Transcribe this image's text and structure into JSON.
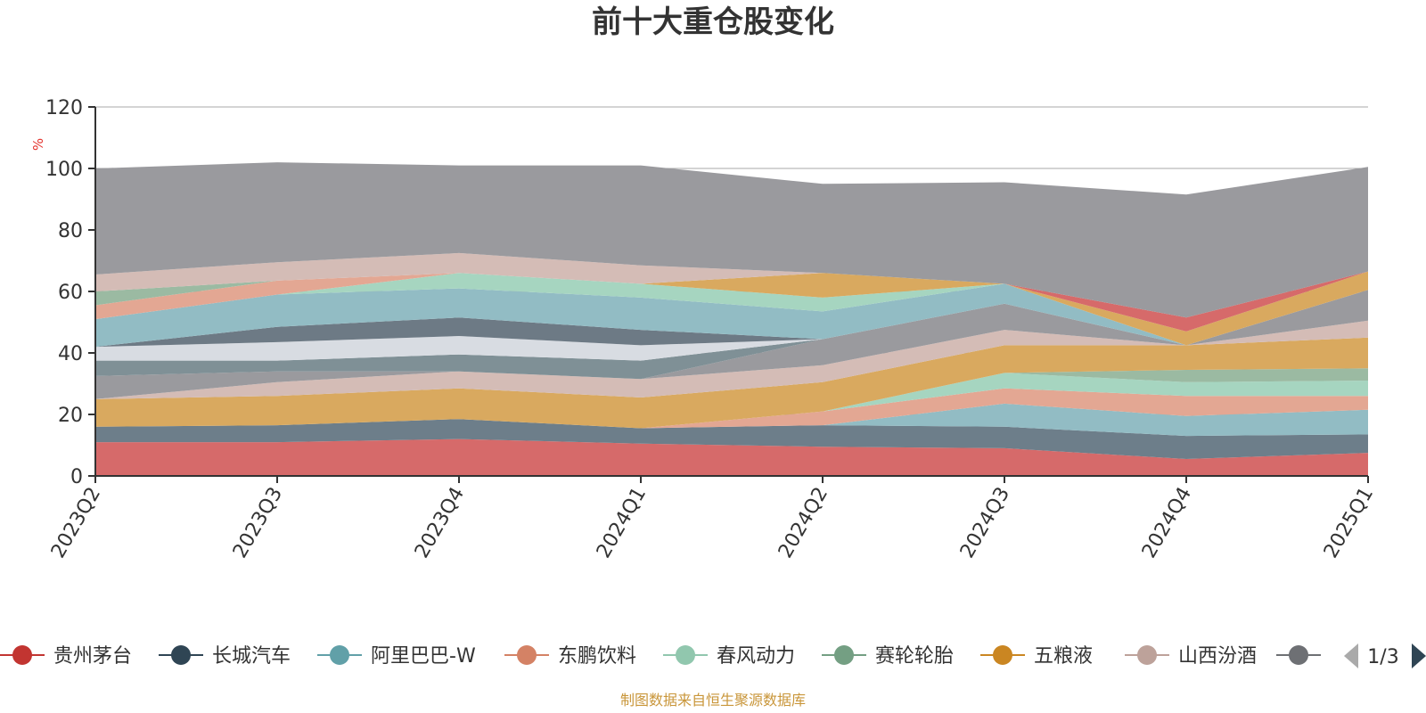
{
  "chart_data": {
    "type": "area",
    "stacked": true,
    "title": "前十大重仓股变化",
    "ylabel": "%",
    "ylim": [
      0,
      120
    ],
    "yticks": [
      0,
      20,
      40,
      60,
      80,
      100,
      120
    ],
    "grid": true,
    "x": [
      "2023Q2",
      "2023Q3",
      "2023Q4",
      "2024Q1",
      "2024Q2",
      "2024Q3",
      "2024Q4",
      "2025Q1"
    ],
    "series": [
      {
        "name": "贵州茅台",
        "color": "#d66a6a",
        "values": [
          11,
          11,
          12,
          10.5,
          9.5,
          9,
          5.5,
          7.5
        ]
      },
      {
        "name": "长城汽车",
        "color": "#6d7e8a",
        "values": [
          5,
          5.5,
          6.5,
          5,
          7,
          7,
          7.5,
          6
        ]
      },
      {
        "name": "阿里巴巴-W",
        "color": "#92bcc4",
        "values": [
          0,
          0,
          0,
          0,
          0,
          7.5,
          6.5,
          8
        ]
      },
      {
        "name": "东鹏饮料",
        "color": "#e3a793",
        "values": [
          0,
          0,
          0,
          0,
          4.5,
          5,
          6.5,
          4.5
        ]
      },
      {
        "name": "春风动力",
        "color": "#a6d5c0",
        "values": [
          0,
          0,
          0,
          0,
          0,
          5,
          4.5,
          5
        ]
      },
      {
        "name": "赛轮轮胎",
        "color": "#9bbaa2",
        "values": [
          0,
          0,
          0,
          0,
          0,
          0,
          4,
          4
        ]
      },
      {
        "name": "五粮液",
        "color": "#d9a95f",
        "values": [
          9,
          9.5,
          10,
          10,
          9.5,
          9,
          8,
          10
        ]
      },
      {
        "name": "山西汾酒",
        "color": "#d4bcb6",
        "values": [
          0,
          4.5,
          5.5,
          6,
          5.5,
          5,
          0,
          5.5
        ]
      },
      {
        "name": "",
        "color": "#9a9a9e",
        "values": [
          7.5,
          3.5,
          0,
          0,
          8.5,
          8.5,
          0,
          10
        ]
      },
      {
        "name": "",
        "color": "#7f9096",
        "values": [
          5,
          3.5,
          5.5,
          6,
          0,
          0,
          0,
          0
        ]
      },
      {
        "name": "",
        "color": "#d8dce2",
        "values": [
          4.5,
          6,
          6,
          5,
          0,
          0,
          0,
          0
        ]
      },
      {
        "name": "",
        "color": "#6d7a85",
        "values": [
          0,
          5,
          6,
          5,
          0,
          0,
          0,
          0
        ]
      },
      {
        "name": "",
        "color": "#92bcc4",
        "values": [
          9,
          10.5,
          9.5,
          10.5,
          9,
          6.5,
          0,
          0
        ]
      },
      {
        "name": "",
        "color": "#a6d5c0",
        "values": [
          0,
          0,
          5,
          4.5,
          4.5,
          0,
          0,
          0
        ]
      },
      {
        "name": "",
        "color": "#e3a793",
        "values": [
          4.5,
          4.5,
          0,
          0,
          0,
          0,
          0,
          0
        ]
      },
      {
        "name": "",
        "color": "#9bbaa2",
        "values": [
          4.5,
          0,
          0,
          0,
          0,
          0,
          0,
          0
        ]
      },
      {
        "name": "",
        "color": "#d9a95f",
        "values": [
          0,
          0,
          0,
          0,
          8,
          0,
          4.5,
          6
        ]
      },
      {
        "name": "",
        "color": "#d66a6a",
        "values": [
          0,
          0,
          0,
          0,
          0,
          0,
          4.5,
          0
        ]
      },
      {
        "name": "",
        "color": "#d4bcb6",
        "values": [
          5.5,
          6,
          6.5,
          6,
          0,
          0,
          0,
          0
        ]
      },
      {
        "name": "",
        "color": "#9a9a9e",
        "values": [
          34.5,
          32.5,
          28.5,
          32.5,
          29,
          33,
          40,
          34
        ]
      }
    ],
    "legend": {
      "position": "bottom",
      "items": [
        {
          "name": "贵州茅台",
          "color": "#c23531"
        },
        {
          "name": "长城汽车",
          "color": "#2f4554"
        },
        {
          "name": "阿里巴巴-W",
          "color": "#61a0a8"
        },
        {
          "name": "东鹏饮料",
          "color": "#d48265"
        },
        {
          "name": "春风动力",
          "color": "#91c7ae"
        },
        {
          "name": "赛轮轮胎",
          "color": "#749f83"
        },
        {
          "name": "五粮液",
          "color": "#ca8622"
        },
        {
          "name": "山西汾酒",
          "color": "#bda29a"
        },
        {
          "name": "",
          "color": "#6e7074"
        }
      ],
      "page": "1/3"
    },
    "source": "制图数据来自恒生聚源数据库"
  },
  "colors": {
    "axis": "#333333",
    "grid": "#aaaaaa",
    "pager_active": "#2f4554",
    "pager_inactive": "#aaaaaa"
  }
}
